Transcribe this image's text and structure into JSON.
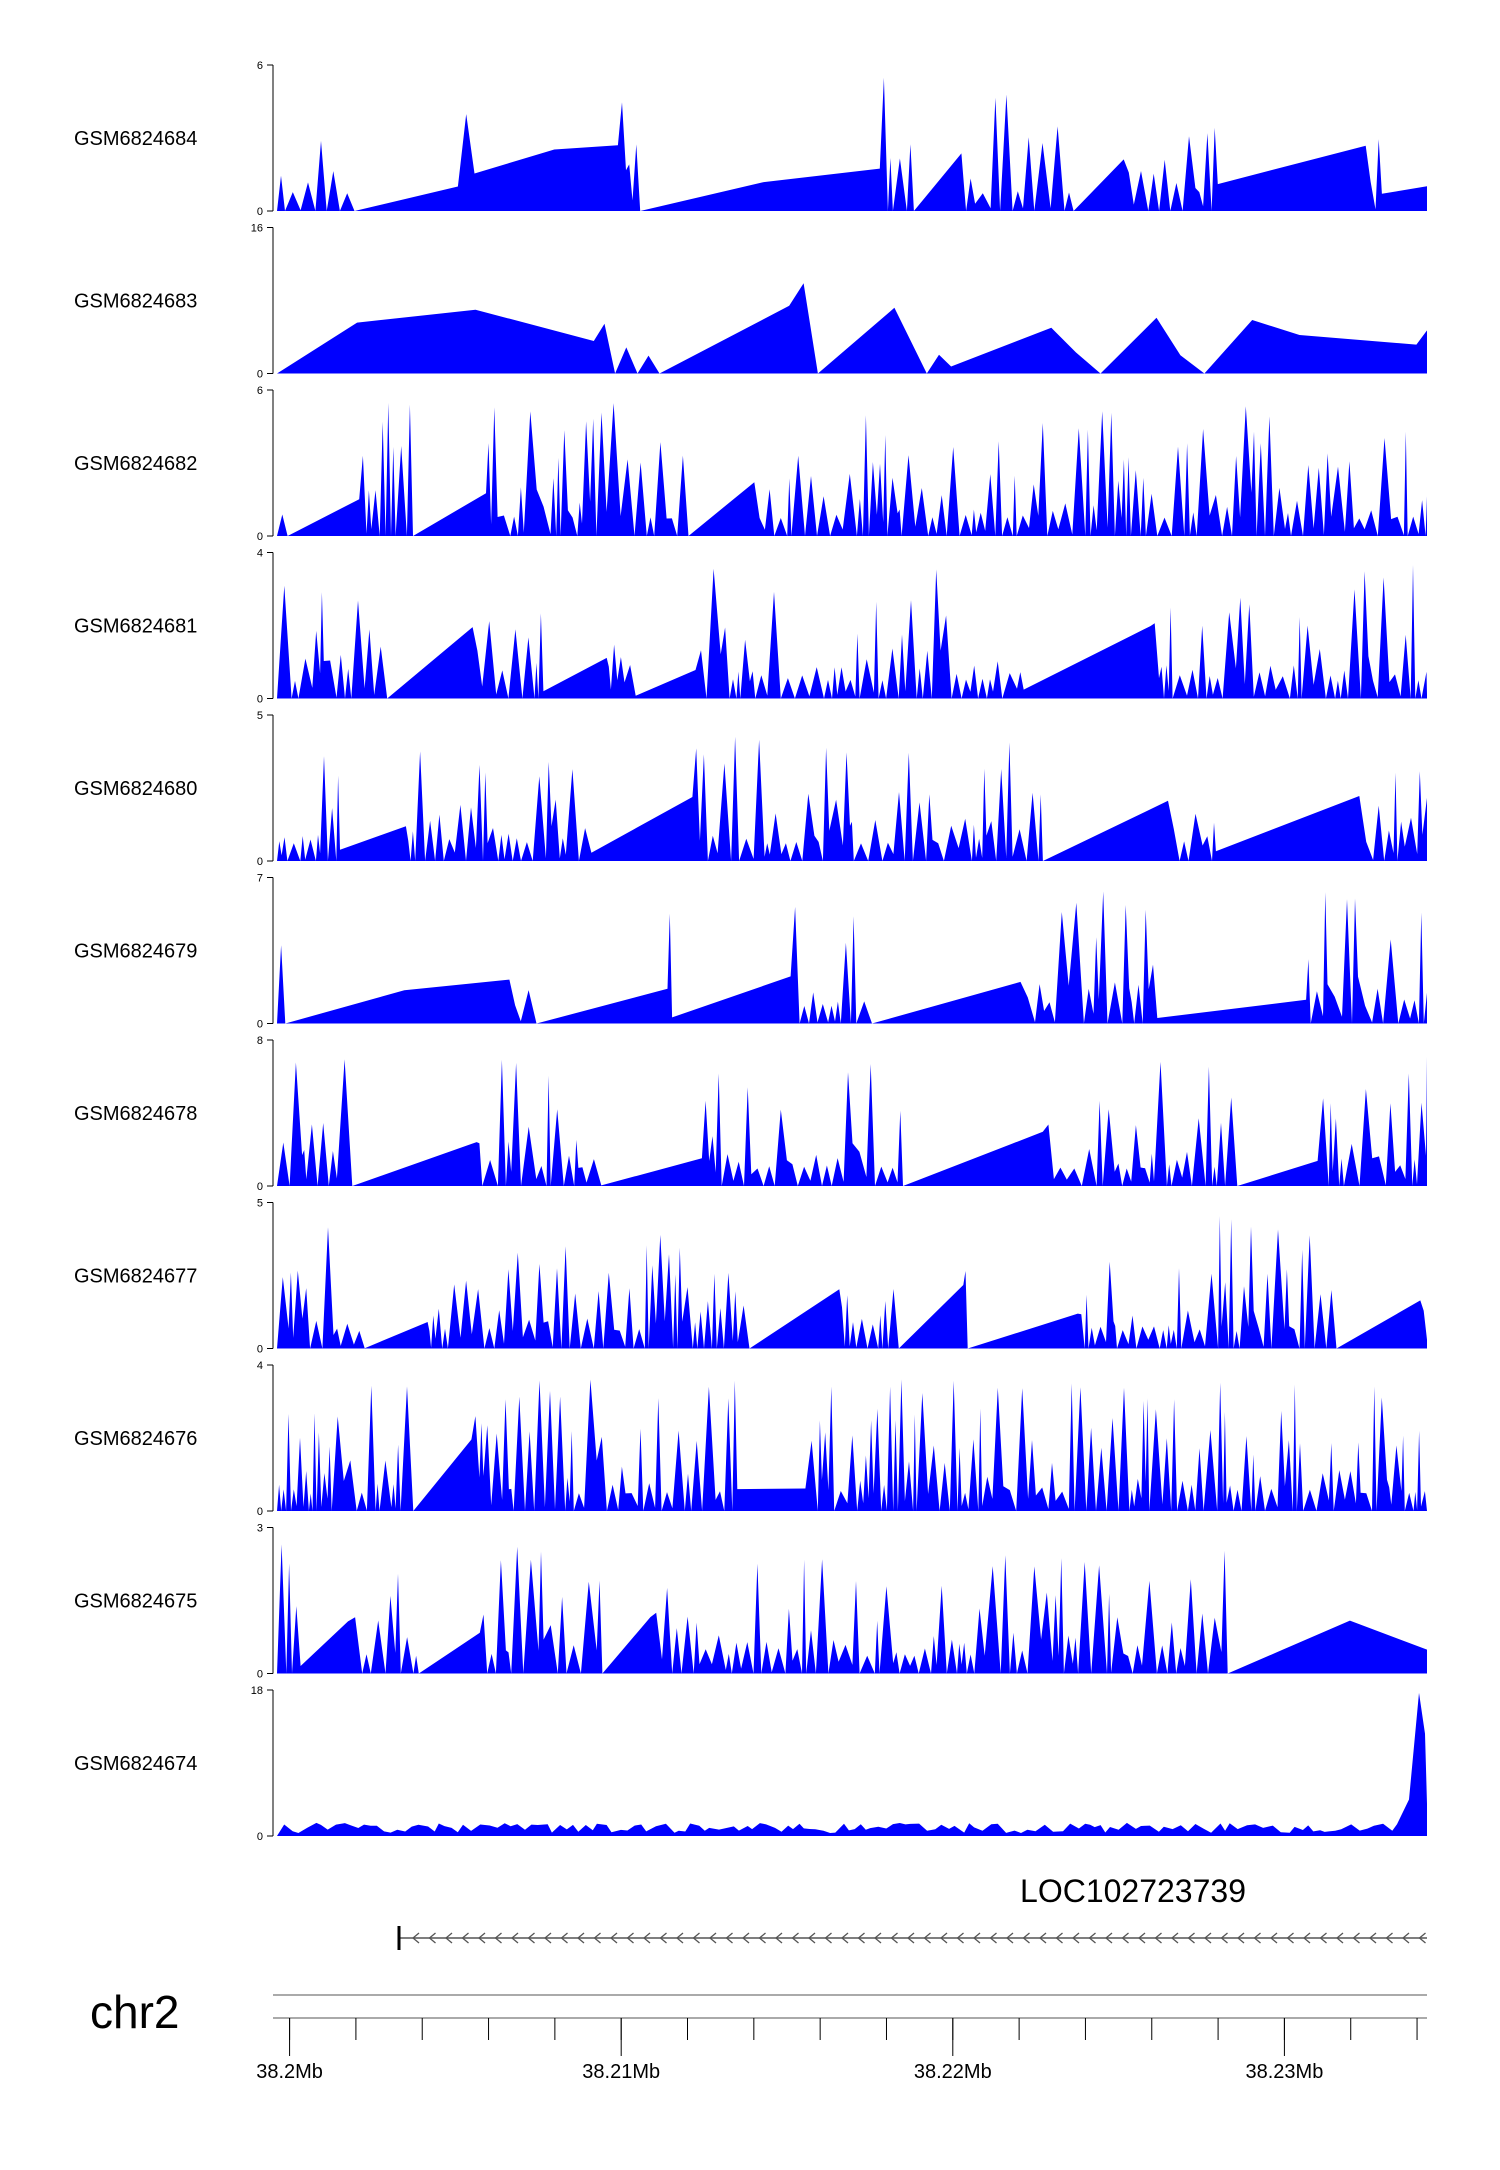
{
  "chart_data": {
    "type": "area",
    "fill_color": "#0000ff",
    "x_range_mb": [
      38.1995,
      38.2343
    ],
    "tracks": [
      {
        "name": "GSM6824684",
        "ymax": 6,
        "ymin_label": "0",
        "ymax_label": "6",
        "seed": 11,
        "density": 1.0,
        "sparse": 0.15
      },
      {
        "name": "GSM6824683",
        "ymax": 16,
        "ymin_label": "0",
        "ymax_label": "16",
        "seed": 23,
        "density": 0.35,
        "sparse": 0.55
      },
      {
        "name": "GSM6824682",
        "ymax": 6,
        "ymin_label": "0",
        "ymax_label": "6",
        "seed": 37,
        "density": 1.2,
        "sparse": 0.05
      },
      {
        "name": "GSM6824681",
        "ymax": 4,
        "ymin_label": "0",
        "ymax_label": "4",
        "seed": 41,
        "density": 1.2,
        "sparse": 0.05
      },
      {
        "name": "GSM6824680",
        "ymax": 5,
        "ymin_label": "0",
        "ymax_label": "5",
        "seed": 53,
        "density": 1.2,
        "sparse": 0.05
      },
      {
        "name": "GSM6824679",
        "ymax": 7,
        "ymin_label": "0",
        "ymax_label": "7",
        "seed": 67,
        "density": 1.1,
        "sparse": 0.08
      },
      {
        "name": "GSM6824678",
        "ymax": 8,
        "ymin_label": "0",
        "ymax_label": "8",
        "seed": 71,
        "density": 1.1,
        "sparse": 0.05
      },
      {
        "name": "GSM6824677",
        "ymax": 5,
        "ymin_label": "0",
        "ymax_label": "5",
        "seed": 83,
        "density": 1.3,
        "sparse": 0.02
      },
      {
        "name": "GSM6824676",
        "ymax": 4,
        "ymin_label": "0",
        "ymax_label": "4",
        "seed": 97,
        "density": 1.3,
        "sparse": 0.02
      },
      {
        "name": "GSM6824675",
        "ymax": 3,
        "ymin_label": "0",
        "ymax_label": "3",
        "seed": 101,
        "density": 1.1,
        "sparse": 0.08
      },
      {
        "name": "GSM6824674",
        "ymax": 18,
        "ymin_label": "0",
        "ymax_label": "18",
        "seed": 113,
        "density": 1.5,
        "sparse": 0.0
      }
    ],
    "gene": {
      "name": "LOC102723739",
      "start_mb": 38.2033,
      "end_mb": 38.2343,
      "strand": "-"
    },
    "chromosome": "chr2",
    "x_ticks": [
      {
        "value": 38.2,
        "label": "38.2Mb"
      },
      {
        "value": 38.21,
        "label": "38.21Mb"
      },
      {
        "value": 38.22,
        "label": "38.22Mb"
      },
      {
        "value": 38.23,
        "label": "38.23Mb"
      }
    ],
    "minor_tick_step_mb": 0.002
  }
}
